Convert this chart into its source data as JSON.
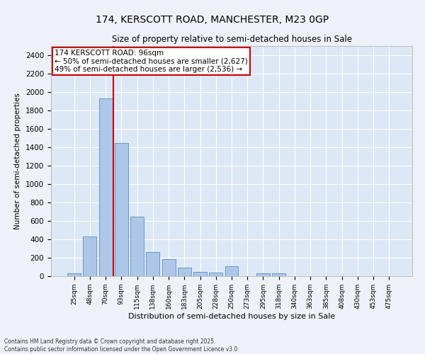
{
  "title": "174, KERSCOTT ROAD, MANCHESTER, M23 0GP",
  "subtitle": "Size of property relative to semi-detached houses in Sale",
  "xlabel": "Distribution of semi-detached houses by size in Sale",
  "ylabel": "Number of semi-detached properties",
  "categories": [
    "25sqm",
    "48sqm",
    "70sqm",
    "93sqm",
    "115sqm",
    "138sqm",
    "160sqm",
    "183sqm",
    "205sqm",
    "228sqm",
    "250sqm",
    "273sqm",
    "295sqm",
    "318sqm",
    "340sqm",
    "363sqm",
    "385sqm",
    "408sqm",
    "430sqm",
    "453sqm",
    "475sqm"
  ],
  "values": [
    30,
    430,
    1930,
    1450,
    650,
    260,
    185,
    90,
    50,
    35,
    110,
    0,
    30,
    30,
    0,
    0,
    0,
    0,
    0,
    0,
    0
  ],
  "bar_color": "#aec6e8",
  "bar_edgecolor": "#5a8fc2",
  "vline_color": "#cc0000",
  "vline_position": 2.5,
  "annotation_title": "174 KERSCOTT ROAD: 96sqm",
  "annotation_line1": "← 50% of semi-detached houses are smaller (2,627)",
  "annotation_line2": "49% of semi-detached houses are larger (2,536) →",
  "annotation_box_edgecolor": "#cc0000",
  "ylim": [
    0,
    2500
  ],
  "yticks": [
    0,
    200,
    400,
    600,
    800,
    1000,
    1200,
    1400,
    1600,
    1800,
    2000,
    2200,
    2400
  ],
  "footer_line1": "Contains HM Land Registry data © Crown copyright and database right 2025.",
  "footer_line2": "Contains public sector information licensed under the Open Government Licence v3.0.",
  "background_color": "#eef2f8",
  "plot_background": "#dce8f5",
  "title_fontsize": 10,
  "subtitle_fontsize": 8.5,
  "ylabel_fontsize": 7.5,
  "xlabel_fontsize": 8,
  "tick_fontsize": 7.5,
  "xtick_fontsize": 6.5,
  "footer_fontsize": 5.5,
  "annotation_fontsize": 7.5
}
